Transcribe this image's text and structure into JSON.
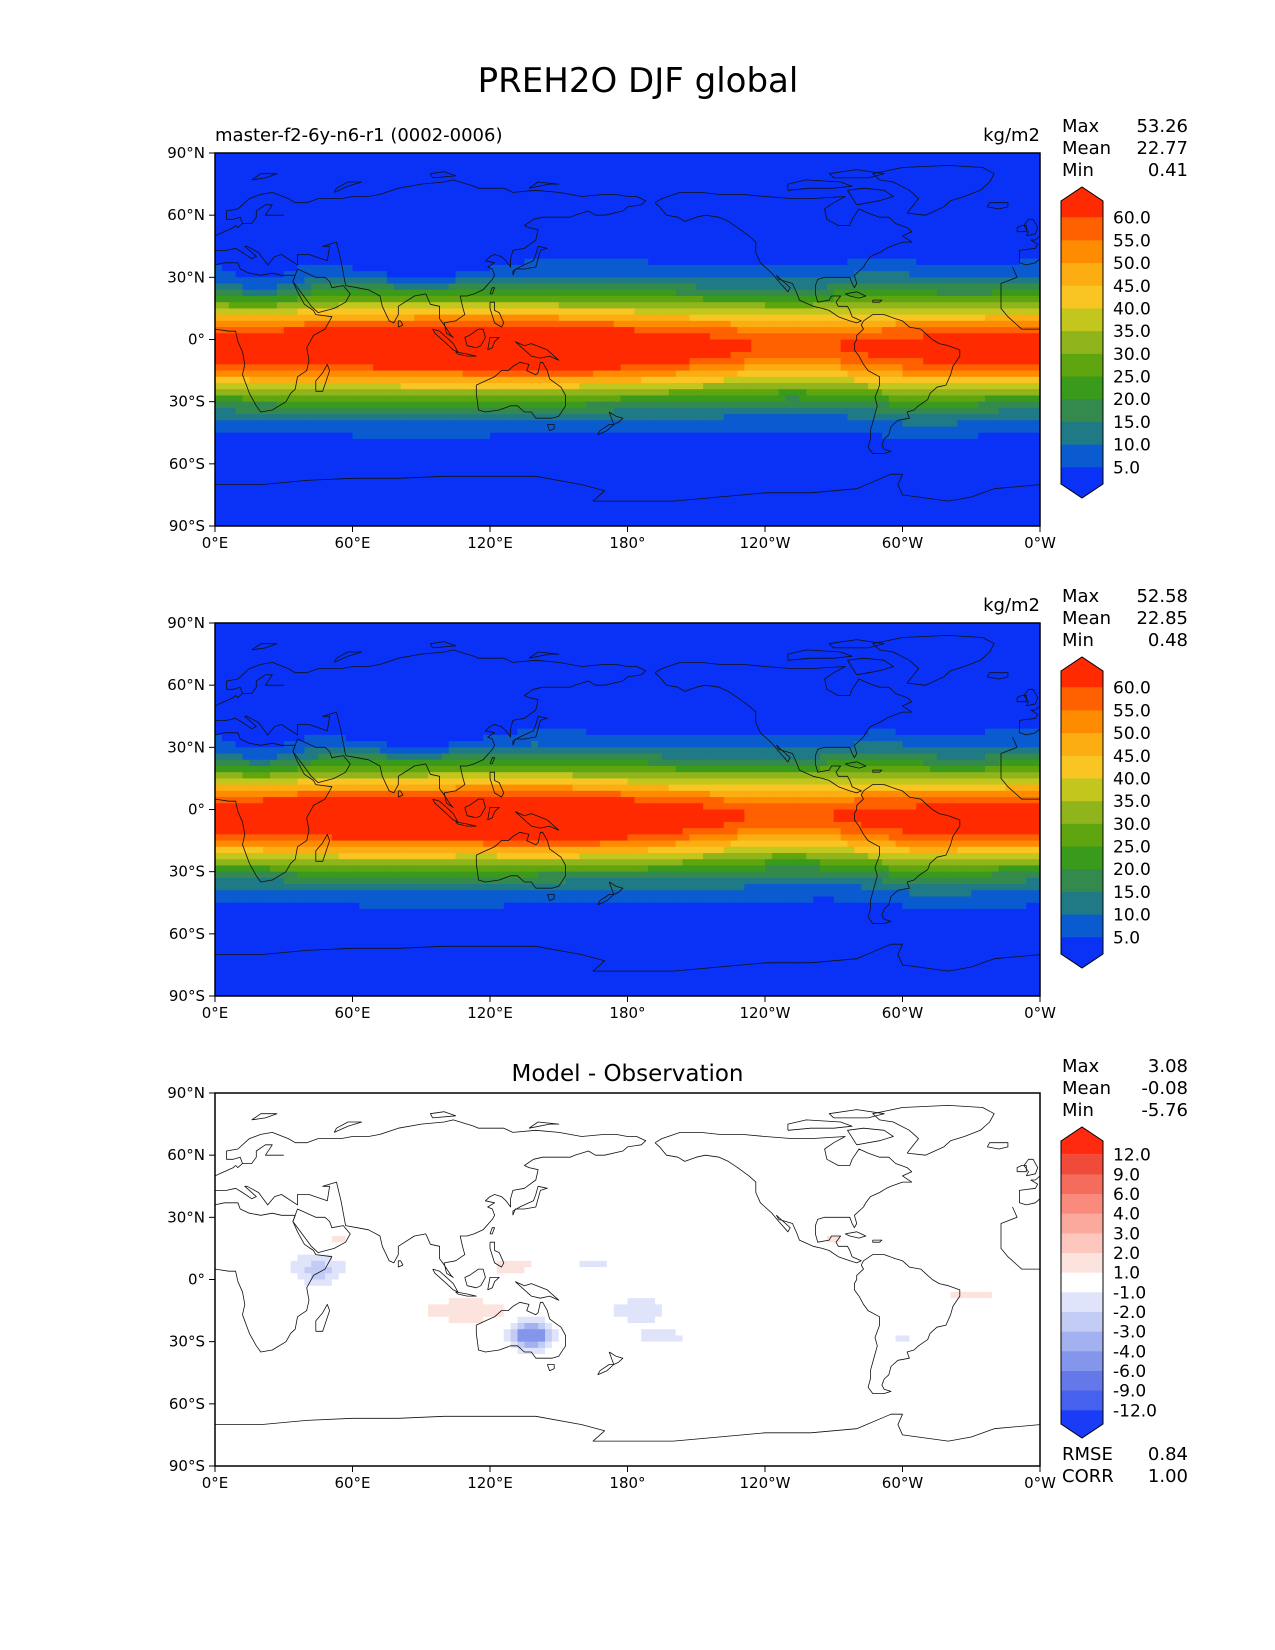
{
  "title": "PREH2O DJF global",
  "x_ticks": [
    "0°E",
    "60°E",
    "120°E",
    "180°",
    "120°W",
    "60°W",
    "0°W"
  ],
  "y_ticks": [
    "90°N",
    "60°N",
    "30°N",
    "0°",
    "30°S",
    "60°S",
    "90°S"
  ],
  "stat_labels": {
    "max": "Max",
    "mean": "Mean",
    "min": "Min",
    "rmse": "RMSE",
    "corr": "CORR"
  },
  "panels": [
    {
      "left_title": "master-f2-6y-n6-r1 (0002-0006)",
      "center_title": "",
      "units": "kg/m2",
      "stats": {
        "max": "53.26",
        "mean": "22.77",
        "min": "0.41"
      },
      "colorbar": {
        "levels": [
          "60.0",
          "55.0",
          "50.0",
          "45.0",
          "40.0",
          "35.0",
          "30.0",
          "25.0",
          "20.0",
          "15.0",
          "10.0",
          "5.0"
        ],
        "colors": [
          "#ff2a00",
          "#ff6000",
          "#ff8c00",
          "#fcad12",
          "#f8c522",
          "#c3c61d",
          "#90b41c",
          "#5ea50f",
          "#3a9a1c",
          "#338a4c",
          "#1f7a86",
          "#0a5ad0",
          "#0a32f6"
        ]
      }
    },
    {
      "left_title": "",
      "center_title": "",
      "units": "kg/m2",
      "stats": {
        "max": "52.58",
        "mean": "22.85",
        "min": "0.48"
      },
      "colorbar": {
        "levels": [
          "60.0",
          "55.0",
          "50.0",
          "45.0",
          "40.0",
          "35.0",
          "30.0",
          "25.0",
          "20.0",
          "15.0",
          "10.0",
          "5.0"
        ],
        "colors": [
          "#ff2a00",
          "#ff6000",
          "#ff8c00",
          "#fcad12",
          "#f8c522",
          "#c3c61d",
          "#90b41c",
          "#5ea50f",
          "#3a9a1c",
          "#338a4c",
          "#1f7a86",
          "#0a5ad0",
          "#0a32f6"
        ]
      }
    },
    {
      "left_title": "",
      "center_title": "Model - Observation",
      "units": "",
      "stats": {
        "max": "3.08",
        "mean": "-0.08",
        "min": "-5.76",
        "rmse": "0.84",
        "corr": "1.00"
      },
      "colorbar": {
        "levels": [
          "12.0",
          "9.0",
          "6.0",
          "4.0",
          "3.0",
          "2.0",
          "1.0",
          "-1.0",
          "-2.0",
          "-3.0",
          "-4.0",
          "-6.0",
          "-9.0",
          "-12.0"
        ],
        "colors": [
          "#ff2a10",
          "#f04a3a",
          "#f66c5c",
          "#f98a7c",
          "#fba99c",
          "#fdc7bd",
          "#fde3dd",
          "#ffffff",
          "#dfe4fa",
          "#c3ccf5",
          "#a3b1f0",
          "#8495ec",
          "#6478ea",
          "#4661ee",
          "#1a3cf6"
        ]
      }
    }
  ]
}
